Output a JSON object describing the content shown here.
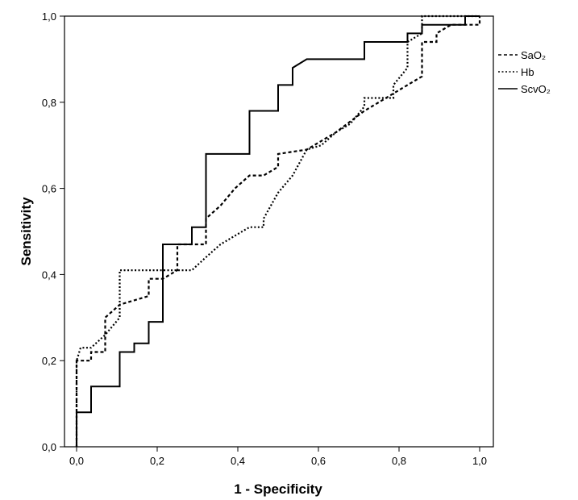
{
  "chart_data": {
    "type": "line",
    "title": "",
    "xlabel": "1 - Specificity",
    "ylabel": "Sensitivity",
    "xlim": [
      0,
      1
    ],
    "ylim": [
      0,
      1
    ],
    "xticks": [
      "0,0",
      "0,2",
      "0,4",
      "0,6",
      "0,8",
      "1,0"
    ],
    "yticks": [
      "0,0",
      "0,2",
      "0,4",
      "0,6",
      "0,8",
      "1,0"
    ],
    "grid": false,
    "legend_position": "right",
    "series": [
      {
        "name": "SaO₂",
        "style": "dashed",
        "color": "#000000",
        "points": [
          [
            0,
            0
          ],
          [
            0,
            0.2
          ],
          [
            0.036,
            0.2
          ],
          [
            0.036,
            0.22
          ],
          [
            0.071,
            0.22
          ],
          [
            0.071,
            0.3
          ],
          [
            0.107,
            0.33
          ],
          [
            0.143,
            0.34
          ],
          [
            0.179,
            0.35
          ],
          [
            0.179,
            0.39
          ],
          [
            0.214,
            0.39
          ],
          [
            0.25,
            0.41
          ],
          [
            0.25,
            0.47
          ],
          [
            0.321,
            0.47
          ],
          [
            0.321,
            0.53
          ],
          [
            0.357,
            0.56
          ],
          [
            0.393,
            0.6
          ],
          [
            0.429,
            0.63
          ],
          [
            0.464,
            0.63
          ],
          [
            0.5,
            0.65
          ],
          [
            0.5,
            0.68
          ],
          [
            0.571,
            0.69
          ],
          [
            0.643,
            0.73
          ],
          [
            0.714,
            0.78
          ],
          [
            0.75,
            0.8
          ],
          [
            0.821,
            0.84
          ],
          [
            0.857,
            0.86
          ],
          [
            0.857,
            0.94
          ],
          [
            0.893,
            0.94
          ],
          [
            0.893,
            0.96
          ],
          [
            0.929,
            0.98
          ],
          [
            1.0,
            0.98
          ],
          [
            1.0,
            1.0
          ]
        ]
      },
      {
        "name": "Hb",
        "style": "dotted",
        "color": "#000000",
        "points": [
          [
            0,
            0
          ],
          [
            0,
            0.2
          ],
          [
            0.01,
            0.23
          ],
          [
            0.036,
            0.23
          ],
          [
            0.071,
            0.26
          ],
          [
            0.107,
            0.3
          ],
          [
            0.107,
            0.41
          ],
          [
            0.143,
            0.41
          ],
          [
            0.179,
            0.41
          ],
          [
            0.214,
            0.41
          ],
          [
            0.286,
            0.41
          ],
          [
            0.321,
            0.44
          ],
          [
            0.357,
            0.47
          ],
          [
            0.393,
            0.49
          ],
          [
            0.429,
            0.51
          ],
          [
            0.464,
            0.51
          ],
          [
            0.464,
            0.53
          ],
          [
            0.5,
            0.59
          ],
          [
            0.536,
            0.63
          ],
          [
            0.571,
            0.69
          ],
          [
            0.607,
            0.7
          ],
          [
            0.643,
            0.73
          ],
          [
            0.679,
            0.75
          ],
          [
            0.714,
            0.79
          ],
          [
            0.714,
            0.81
          ],
          [
            0.786,
            0.81
          ],
          [
            0.786,
            0.84
          ],
          [
            0.821,
            0.88
          ],
          [
            0.821,
            0.94
          ],
          [
            0.857,
            0.96
          ],
          [
            0.857,
            1.0
          ],
          [
            1.0,
            1.0
          ]
        ]
      },
      {
        "name": "ScvO₂",
        "style": "solid",
        "color": "#000000",
        "points": [
          [
            0,
            0
          ],
          [
            0,
            0.08
          ],
          [
            0.036,
            0.08
          ],
          [
            0.036,
            0.14
          ],
          [
            0.107,
            0.14
          ],
          [
            0.107,
            0.22
          ],
          [
            0.143,
            0.22
          ],
          [
            0.143,
            0.24
          ],
          [
            0.179,
            0.24
          ],
          [
            0.179,
            0.29
          ],
          [
            0.214,
            0.29
          ],
          [
            0.214,
            0.47
          ],
          [
            0.286,
            0.47
          ],
          [
            0.286,
            0.51
          ],
          [
            0.321,
            0.51
          ],
          [
            0.321,
            0.68
          ],
          [
            0.429,
            0.68
          ],
          [
            0.429,
            0.78
          ],
          [
            0.5,
            0.78
          ],
          [
            0.5,
            0.84
          ],
          [
            0.536,
            0.84
          ],
          [
            0.536,
            0.88
          ],
          [
            0.571,
            0.9
          ],
          [
            0.714,
            0.9
          ],
          [
            0.714,
            0.94
          ],
          [
            0.821,
            0.94
          ],
          [
            0.821,
            0.96
          ],
          [
            0.857,
            0.96
          ],
          [
            0.857,
            0.98
          ],
          [
            0.964,
            0.98
          ],
          [
            0.964,
            1.0
          ],
          [
            1.0,
            1.0
          ]
        ]
      }
    ]
  }
}
